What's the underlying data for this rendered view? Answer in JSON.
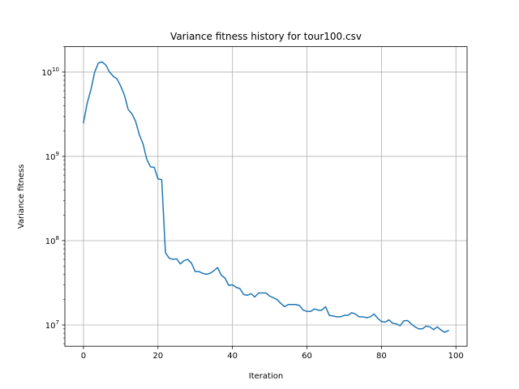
{
  "chart_data": {
    "type": "line",
    "title": "Variance fitness history for tour100.csv",
    "xlabel": "Iteration",
    "ylabel": "Variance fitness",
    "yscale": "log",
    "xlim": [
      -5,
      103
    ],
    "ylim": [
      5600000,
      20000000000
    ],
    "grid": true,
    "line_color": "#1f77b4",
    "x_ticks": [
      0,
      20,
      40,
      60,
      80,
      100
    ],
    "x_tick_labels": [
      "0",
      "20",
      "40",
      "60",
      "80",
      "100"
    ],
    "y_ticks": [
      10000000,
      100000000,
      1000000000,
      10000000000
    ],
    "y_tick_labels": [
      {
        "base": "10",
        "exp": "7"
      },
      {
        "base": "10",
        "exp": "8"
      },
      {
        "base": "10",
        "exp": "9"
      },
      {
        "base": "10",
        "exp": "10"
      }
    ],
    "series": [
      {
        "x": [
          0,
          1,
          2,
          3,
          4,
          5,
          6,
          7,
          8,
          9,
          10,
          11,
          12,
          13,
          14,
          15,
          16,
          17,
          18,
          19,
          20,
          21,
          22,
          23,
          24,
          25,
          26,
          27,
          28,
          29,
          30,
          31,
          32,
          33,
          34,
          35,
          36,
          37,
          38,
          39,
          40,
          41,
          42,
          43,
          44,
          45,
          46,
          47,
          48,
          49,
          50,
          51,
          52,
          53,
          54,
          55,
          56,
          57,
          58,
          59,
          60,
          61,
          62,
          63,
          64,
          65,
          66,
          67,
          68,
          69,
          70,
          71,
          72,
          73,
          74,
          75,
          76,
          77,
          78,
          79,
          80,
          81,
          82,
          83,
          84,
          85,
          86,
          87,
          88,
          89,
          90,
          91,
          92,
          93,
          94,
          95,
          96,
          97,
          98
        ],
        "values": [
          2500000000,
          4300000000,
          6200000000,
          10000000000,
          12800000000,
          13200000000,
          12100000000,
          10000000000,
          8900000000,
          8300000000,
          6800000000,
          5300000000,
          3600000000,
          3200000000,
          2600000000,
          1800000000,
          1400000000,
          920000000,
          750000000,
          740000000,
          540000000,
          530000000,
          72000000,
          62000000,
          60000000,
          61000000,
          53000000,
          58000000,
          60000000,
          54000000,
          43000000,
          43000000,
          41000000,
          40000000,
          41000000,
          44000000,
          48000000,
          39000000,
          36000000,
          29500000,
          30000000,
          28000000,
          27000000,
          23000000,
          22500000,
          23500000,
          21500000,
          24000000,
          24000000,
          24000000,
          22000000,
          21000000,
          20000000,
          18000000,
          16500000,
          17500000,
          17500000,
          17500000,
          17000000,
          15000000,
          14500000,
          14500000,
          15500000,
          15000000,
          15000000,
          16500000,
          13000000,
          12800000,
          12500000,
          12500000,
          13000000,
          13000000,
          14000000,
          13500000,
          12500000,
          12500000,
          12200000,
          12500000,
          13500000,
          12000000,
          11000000,
          10800000,
          11500000,
          10500000,
          10300000,
          9800000,
          11200000,
          11300000,
          10300000,
          9500000,
          9000000,
          9000000,
          9700000,
          9500000,
          8800000,
          9500000,
          8700000,
          8200000,
          8600000
        ]
      }
    ]
  }
}
